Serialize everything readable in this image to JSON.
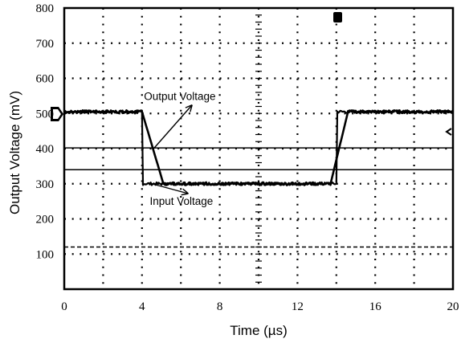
{
  "chart_data": {
    "type": "line",
    "title": "",
    "xlabel": "Time (µs)",
    "ylabel": "Output Voltage (mV)",
    "xlim": [
      0,
      20
    ],
    "ylim": [
      0,
      800
    ],
    "x_ticks": [
      "0",
      "4",
      "8",
      "12",
      "16",
      "20"
    ],
    "y_ticks": [
      "100",
      "200",
      "300",
      "400",
      "500",
      "600",
      "700",
      "800"
    ],
    "grid": "dotted",
    "legend": "none",
    "series": [
      {
        "x": [
          0,
          4.0,
          4.05,
          14.0,
          14.05,
          20
        ],
        "y": [
          505,
          505,
          300,
          300,
          505,
          505
        ],
        "noise": 4
      },
      {
        "x": [
          0,
          4.0,
          5.1,
          13.7,
          14.6,
          20
        ],
        "y": [
          505,
          505,
          300,
          300,
          505,
          505
        ],
        "noise": 4
      }
    ],
    "reference_lines": [
      {
        "axis": "y",
        "value": 340,
        "style": "solid"
      },
      {
        "axis": "y",
        "value": 402,
        "style": "solid"
      },
      {
        "axis": "y",
        "value": 120,
        "style": "dashed"
      }
    ],
    "annotations": [
      {
        "text": "Output Voltage",
        "x": 4.1,
        "y": 538,
        "arrow_to": [
          4.6,
          400
        ]
      },
      {
        "text": "Input Voltage",
        "x": 4.4,
        "y": 240,
        "arrow_to": [
          4.5,
          300
        ]
      }
    ],
    "colors": {
      "line": "#000000",
      "grid": "#000000",
      "background": "#ffffff"
    }
  }
}
